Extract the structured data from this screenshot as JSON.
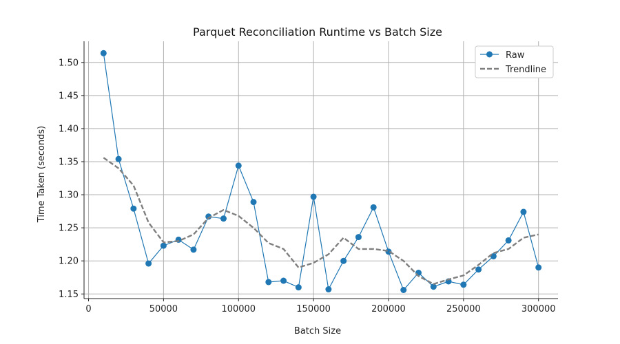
{
  "chart_data": {
    "type": "line",
    "title": "Parquet Reconciliation Runtime vs Batch Size",
    "xlabel": "Batch Size",
    "ylabel": "Time Taken (seconds)",
    "xlim": [
      -3000,
      313000
    ],
    "ylim": [
      1.143,
      1.532
    ],
    "xticks": [
      0,
      50000,
      100000,
      150000,
      200000,
      250000,
      300000
    ],
    "yticks": [
      1.15,
      1.2,
      1.25,
      1.3,
      1.35,
      1.4,
      1.45,
      1.5
    ],
    "grid": true,
    "legend_position": "top-right",
    "x": [
      10000,
      20000,
      30000,
      40000,
      50000,
      60000,
      70000,
      80000,
      90000,
      100000,
      110000,
      120000,
      130000,
      140000,
      150000,
      160000,
      170000,
      180000,
      190000,
      200000,
      210000,
      220000,
      230000,
      240000,
      250000,
      260000,
      270000,
      280000,
      290000,
      300000
    ],
    "series": [
      {
        "name": "Raw",
        "color": "#1f77b4",
        "style": "solid-with-markers",
        "values": [
          1.514,
          1.354,
          1.279,
          1.196,
          1.223,
          1.232,
          1.217,
          1.267,
          1.264,
          1.344,
          1.289,
          1.168,
          1.17,
          1.16,
          1.297,
          1.157,
          1.2,
          1.236,
          1.281,
          1.214,
          1.156,
          1.182,
          1.161,
          1.169,
          1.164,
          1.187,
          1.207,
          1.231,
          1.274,
          1.19
        ]
      },
      {
        "name": "Trendline",
        "color": "#7f7f7f",
        "style": "dashed",
        "values": [
          1.356,
          1.34,
          1.314,
          1.258,
          1.228,
          1.23,
          1.24,
          1.265,
          1.277,
          1.268,
          1.25,
          1.227,
          1.218,
          1.19,
          1.197,
          1.21,
          1.235,
          1.218,
          1.218,
          1.215,
          1.2,
          1.177,
          1.165,
          1.172,
          1.178,
          1.194,
          1.212,
          1.218,
          1.235,
          1.24
        ]
      }
    ]
  }
}
